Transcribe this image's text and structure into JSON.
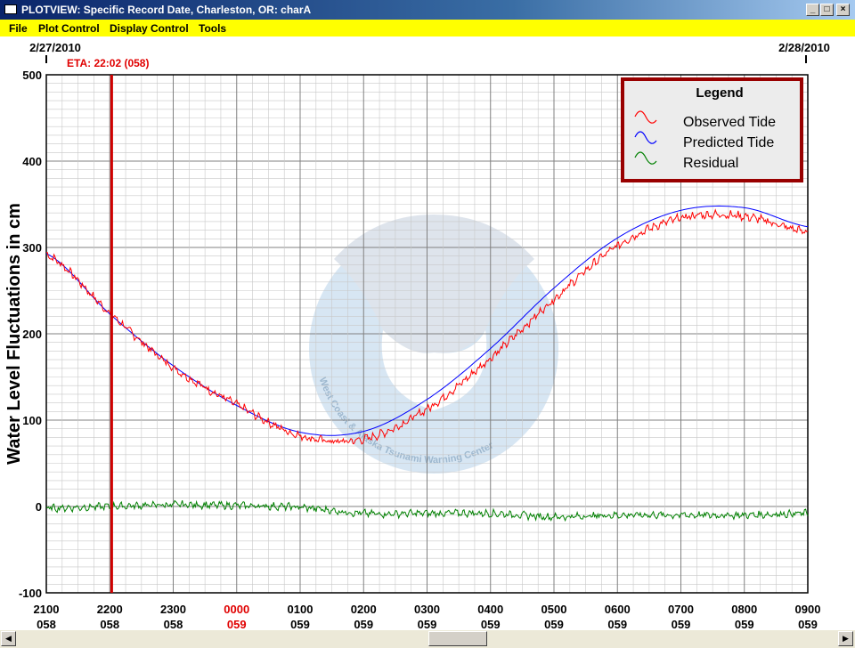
{
  "window": {
    "title": "PLOTVIEW: Specific Record Date, Charleston, OR: charA"
  },
  "menu": {
    "items": [
      "File",
      "Plot Control",
      "Display Control",
      "Tools"
    ]
  },
  "plot": {
    "date_left": "2/27/2010",
    "date_right": "2/28/2010",
    "eta_label": "ETA: 22:02 (058)",
    "marker_time_hours": 22.03,
    "ylabel": "Water Level Fluctuations in cm",
    "yticks": [
      500,
      400,
      300,
      200,
      100,
      0,
      -100
    ],
    "xticks": [
      {
        "time": "2100",
        "day": "058",
        "highlight": false
      },
      {
        "time": "2200",
        "day": "058",
        "highlight": false
      },
      {
        "time": "2300",
        "day": "058",
        "highlight": false
      },
      {
        "time": "0000",
        "day": "059",
        "highlight": true
      },
      {
        "time": "0100",
        "day": "059",
        "highlight": false
      },
      {
        "time": "0200",
        "day": "059",
        "highlight": false
      },
      {
        "time": "0300",
        "day": "059",
        "highlight": false
      },
      {
        "time": "0400",
        "day": "059",
        "highlight": false
      },
      {
        "time": "0500",
        "day": "059",
        "highlight": false
      },
      {
        "time": "0600",
        "day": "059",
        "highlight": false
      },
      {
        "time": "0700",
        "day": "059",
        "highlight": false
      },
      {
        "time": "0800",
        "day": "059",
        "highlight": false
      },
      {
        "time": "0900",
        "day": "059",
        "highlight": false
      }
    ],
    "watermark_text": "West Coast & Alaska Tsunami Warning Center"
  },
  "legend": {
    "title": "Legend",
    "entries": [
      {
        "label": "Observed Tide",
        "color": "#ff0000"
      },
      {
        "label": "Predicted Tide",
        "color": "#0000ff"
      },
      {
        "label": "Residual",
        "color": "#008000"
      }
    ]
  },
  "chart_data": {
    "type": "line",
    "xlabel": "",
    "ylabel": "Water Level Fluctuations in cm",
    "ylim": [
      -100,
      500
    ],
    "xlim_hours": [
      21,
      33
    ],
    "grid": true,
    "legend_position": "top-right",
    "series": [
      {
        "name": "Predicted Tide",
        "color": "#0000ff",
        "x_hours": [
          21,
          22,
          23,
          24,
          25,
          26,
          27,
          28,
          29,
          30,
          31,
          32,
          33
        ],
        "values": [
          293,
          223,
          163,
          117,
          86,
          87,
          124,
          183,
          253,
          311,
          343,
          346,
          324
        ]
      },
      {
        "name": "Observed Tide",
        "color": "#ff0000",
        "x_hours": [
          21,
          22,
          23,
          24,
          25,
          26,
          27,
          28,
          29,
          30,
          31,
          32,
          33
        ],
        "values": [
          292,
          224,
          161,
          118,
          82,
          78,
          113,
          172,
          240,
          302,
          334,
          336,
          318
        ]
      },
      {
        "name": "Residual",
        "color": "#008000",
        "x_hours": [
          21,
          22,
          23,
          24,
          25,
          26,
          27,
          28,
          29,
          30,
          31,
          32,
          33
        ],
        "values": [
          -2,
          0,
          2,
          1,
          -1,
          -8,
          -8,
          -8,
          -12,
          -10,
          -10,
          -10,
          -8
        ]
      }
    ]
  }
}
